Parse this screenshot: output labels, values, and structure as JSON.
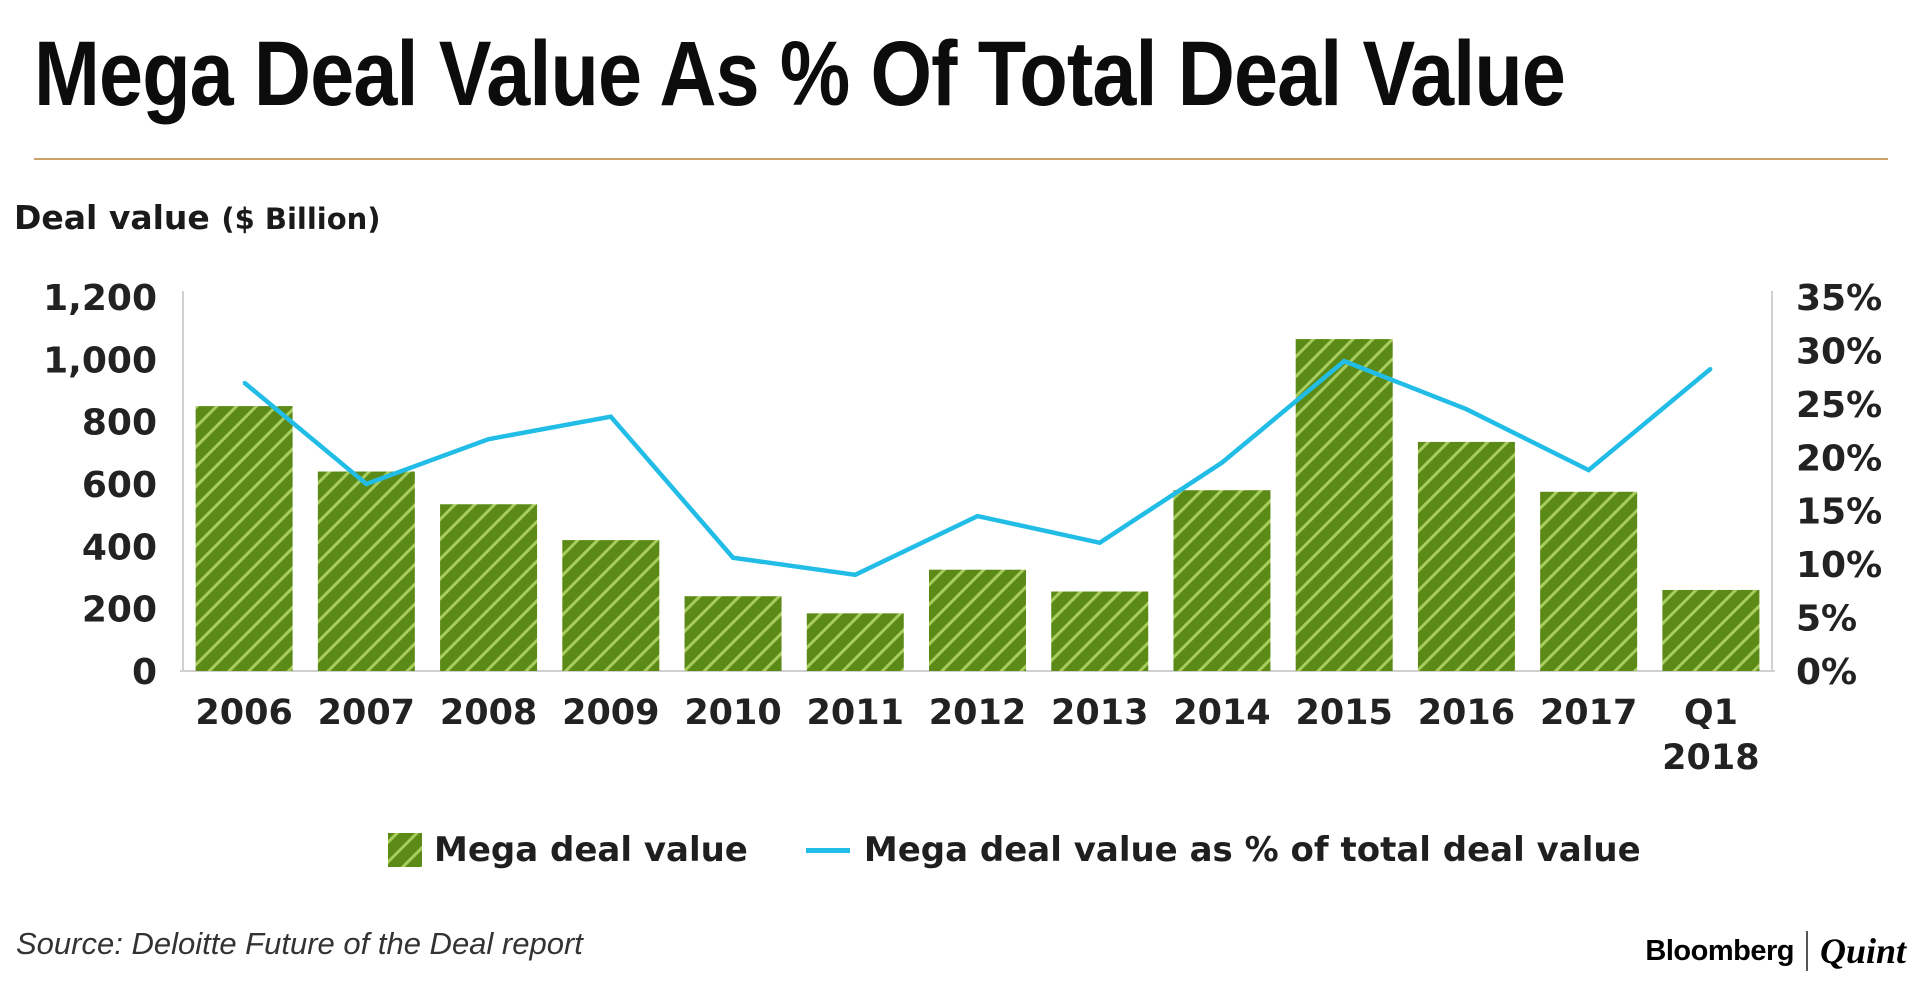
{
  "title": "Mega Deal Value As % Of Total Deal Value",
  "y_axis_title": {
    "main": "Deal value",
    "unit": "($ Billion)"
  },
  "chart_data": {
    "type": "bar",
    "categories": [
      "2006",
      "2007",
      "2008",
      "2009",
      "2010",
      "2011",
      "2012",
      "2013",
      "2014",
      "2015",
      "2016",
      "2017",
      "Q1 2018"
    ],
    "series": [
      {
        "name": "Mega deal value",
        "type": "bar",
        "axis": "left",
        "values": [
          850,
          640,
          535,
          420,
          240,
          185,
          325,
          255,
          580,
          1065,
          735,
          575,
          260
        ]
      },
      {
        "name": "Mega deal value as % of total deal value",
        "type": "line",
        "axis": "right",
        "values": [
          27.0,
          17.5,
          21.7,
          23.8,
          10.6,
          9.0,
          14.5,
          12.0,
          19.5,
          29.0,
          24.5,
          18.8,
          28.3
        ]
      }
    ],
    "y_left": {
      "min": 0,
      "max": 1200,
      "ticks": [
        0,
        200,
        400,
        600,
        800,
        1000,
        1200
      ],
      "tick_labels": [
        "0",
        "200",
        "400",
        "600",
        "800",
        "1,000",
        "1,200"
      ]
    },
    "y_right": {
      "min": 0,
      "max": 35,
      "ticks": [
        0,
        5,
        10,
        15,
        20,
        25,
        30,
        35
      ],
      "tick_labels": [
        "0%",
        "5%",
        "10%",
        "15%",
        "20%",
        "25%",
        "30%",
        "35%"
      ]
    },
    "grid": false,
    "legend": "bottom",
    "colors": {
      "bar": "#5b8b16",
      "bar_stripe": "#a8cc5e",
      "line": "#22bde6"
    }
  },
  "source": "Source: Deloitte Future of the Deal report",
  "brand": {
    "left": "Bloomberg",
    "right": "Quint"
  }
}
